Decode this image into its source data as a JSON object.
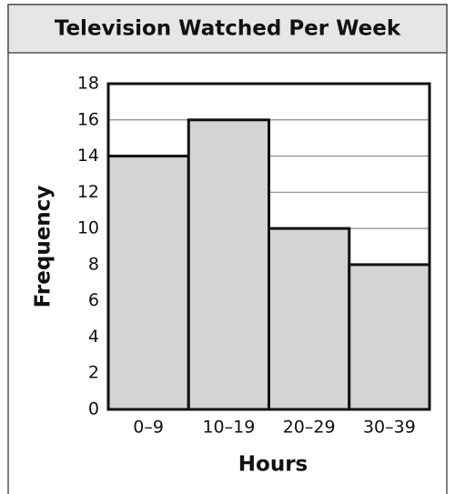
{
  "chart_data": {
    "type": "bar",
    "title": "Television Watched Per Week",
    "x_label": "Hours",
    "y_label": "Frequency",
    "categories": [
      "0–9",
      "10–19",
      "20–29",
      "30–39"
    ],
    "values": [
      14,
      16,
      10,
      8
    ],
    "color": "#d4d4d4",
    "ylim": [
      0,
      18
    ],
    "yticks": [
      0,
      2,
      4,
      6,
      8,
      10,
      12,
      14,
      16,
      18
    ],
    "grid": true
  }
}
